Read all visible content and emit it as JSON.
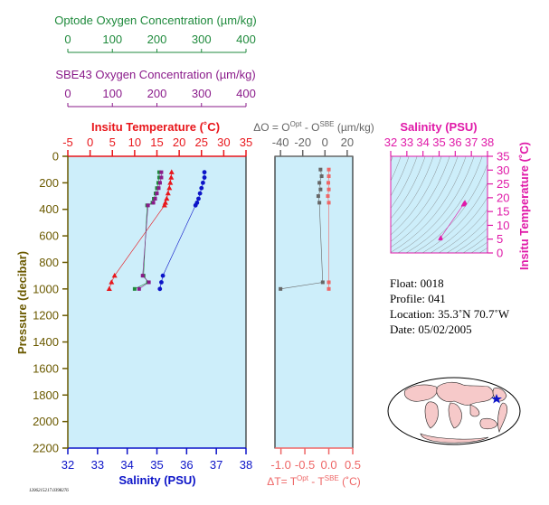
{
  "colors": {
    "temperature": "#e8161b",
    "salinity": "#0c14c8",
    "optode": "#1f8a3c",
    "sbe43": "#8a1a8a",
    "pressure": "#6b5a00",
    "delta_o": "#666666",
    "delta_t": "#ee6666",
    "ts": "#e01aa8",
    "panel_bg": "#cdeefa"
  },
  "top_axes": {
    "optode": {
      "title": "Optode Oxygen Concentration (µm/kg)",
      "ticks": [
        "0",
        "100",
        "200",
        "300",
        "400"
      ]
    },
    "sbe43": {
      "title": "SBE43 Oxygen Concentration (µm/kg)",
      "ticks": [
        "0",
        "100",
        "200",
        "300",
        "400"
      ]
    }
  },
  "panel1": {
    "temp_title": "Insitu Temperature (˚C)",
    "temp_ticks": [
      "-5",
      "0",
      "5",
      "10",
      "15",
      "20",
      "25",
      "30",
      "35"
    ],
    "sal_title": "Salinity (PSU)",
    "sal_ticks": [
      "32",
      "33",
      "34",
      "35",
      "36",
      "37",
      "38"
    ],
    "pressure_title": "Pressure (decibar)",
    "pressure_ticks": [
      "0",
      "200",
      "400",
      "600",
      "800",
      "1000",
      "1200",
      "1400",
      "1600",
      "1800",
      "2000",
      "2200"
    ]
  },
  "panel2": {
    "do_title_parts": [
      "ΔO = O",
      "Opt",
      " - O",
      "SBE",
      " (µm/kg)"
    ],
    "do_ticks": [
      "-40",
      "-20",
      "0",
      "20"
    ],
    "dt_title_parts": [
      "ΔT= T",
      "Opt",
      " - T",
      "SBE",
      " (˚C)"
    ],
    "dt_ticks": [
      "-1.0",
      "-0.5",
      "0.0",
      "0.5"
    ]
  },
  "panel3": {
    "sal_title": "Salinity (PSU)",
    "sal_ticks": [
      "32",
      "33",
      "34",
      "35",
      "36",
      "37",
      "38"
    ],
    "temp_title": "Insitu Temperature (˚C)",
    "temp_ticks": [
      "0",
      "5",
      "10",
      "15",
      "20",
      "25",
      "30",
      "35"
    ]
  },
  "info": {
    "float": "Float:  0018",
    "profile": "Profile:  041",
    "location": "Location:  35.3˚N  70.7˚W",
    "date": "Date:  05/02/2005"
  },
  "footer_id": "1206215217.0398276",
  "chart_data": [
    {
      "type": "scatter",
      "pressure": [
        120,
        160,
        200,
        240,
        280,
        320,
        350,
        370,
        900,
        950,
        1000
      ],
      "series": [
        {
          "name": "Insitu Temperature (˚C)",
          "axis": "temperature",
          "values": [
            18.3,
            18.2,
            18.0,
            17.8,
            17.5,
            17.2,
            16.9,
            16.7,
            5.5,
            4.8,
            4.3
          ]
        },
        {
          "name": "Salinity (PSU)",
          "axis": "salinity",
          "values": [
            36.6,
            36.6,
            36.55,
            36.5,
            36.45,
            36.4,
            36.35,
            36.3,
            35.2,
            35.15,
            35.1
          ]
        },
        {
          "name": "Optode Oxygen Concentration (µm/kg)",
          "axis": "oxygen",
          "values": [
            205,
            205,
            203,
            200,
            197,
            193,
            190,
            178,
            170,
            180,
            150
          ]
        },
        {
          "name": "SBE43 Oxygen Concentration (µm/kg)",
          "axis": "oxygen",
          "values": [
            210,
            210,
            207,
            204,
            200,
            196,
            192,
            180,
            168,
            182,
            160
          ]
        }
      ],
      "pressure_range": [
        0,
        2200
      ],
      "temperature_range": [
        -5,
        35
      ],
      "salinity_range": [
        32,
        38
      ],
      "oxygen_range": [
        0,
        400
      ]
    },
    {
      "type": "scatter",
      "pressure": [
        100,
        150,
        200,
        250,
        300,
        350,
        950,
        1000
      ],
      "series": [
        {
          "name": "ΔO",
          "values": [
            -4,
            -3,
            -5,
            -4,
            -6,
            -5,
            -2,
            -40
          ]
        },
        {
          "name": "ΔT",
          "values": [
            0.0,
            0.0,
            -0.01,
            0.0,
            -0.02,
            0.0,
            0.0,
            0.0
          ]
        }
      ],
      "do_range": [
        -45,
        25
      ],
      "dt_range": [
        -1.125,
        0.5
      ]
    },
    {
      "type": "scatter",
      "salinity": [
        36.6,
        36.58,
        36.55,
        36.52,
        36.5,
        35.1,
        35.08
      ],
      "temperature": [
        18.3,
        18.1,
        17.9,
        17.7,
        17.5,
        5.6,
        5.2
      ],
      "xlim": [
        32,
        38
      ],
      "ylim": [
        0,
        35
      ]
    }
  ]
}
